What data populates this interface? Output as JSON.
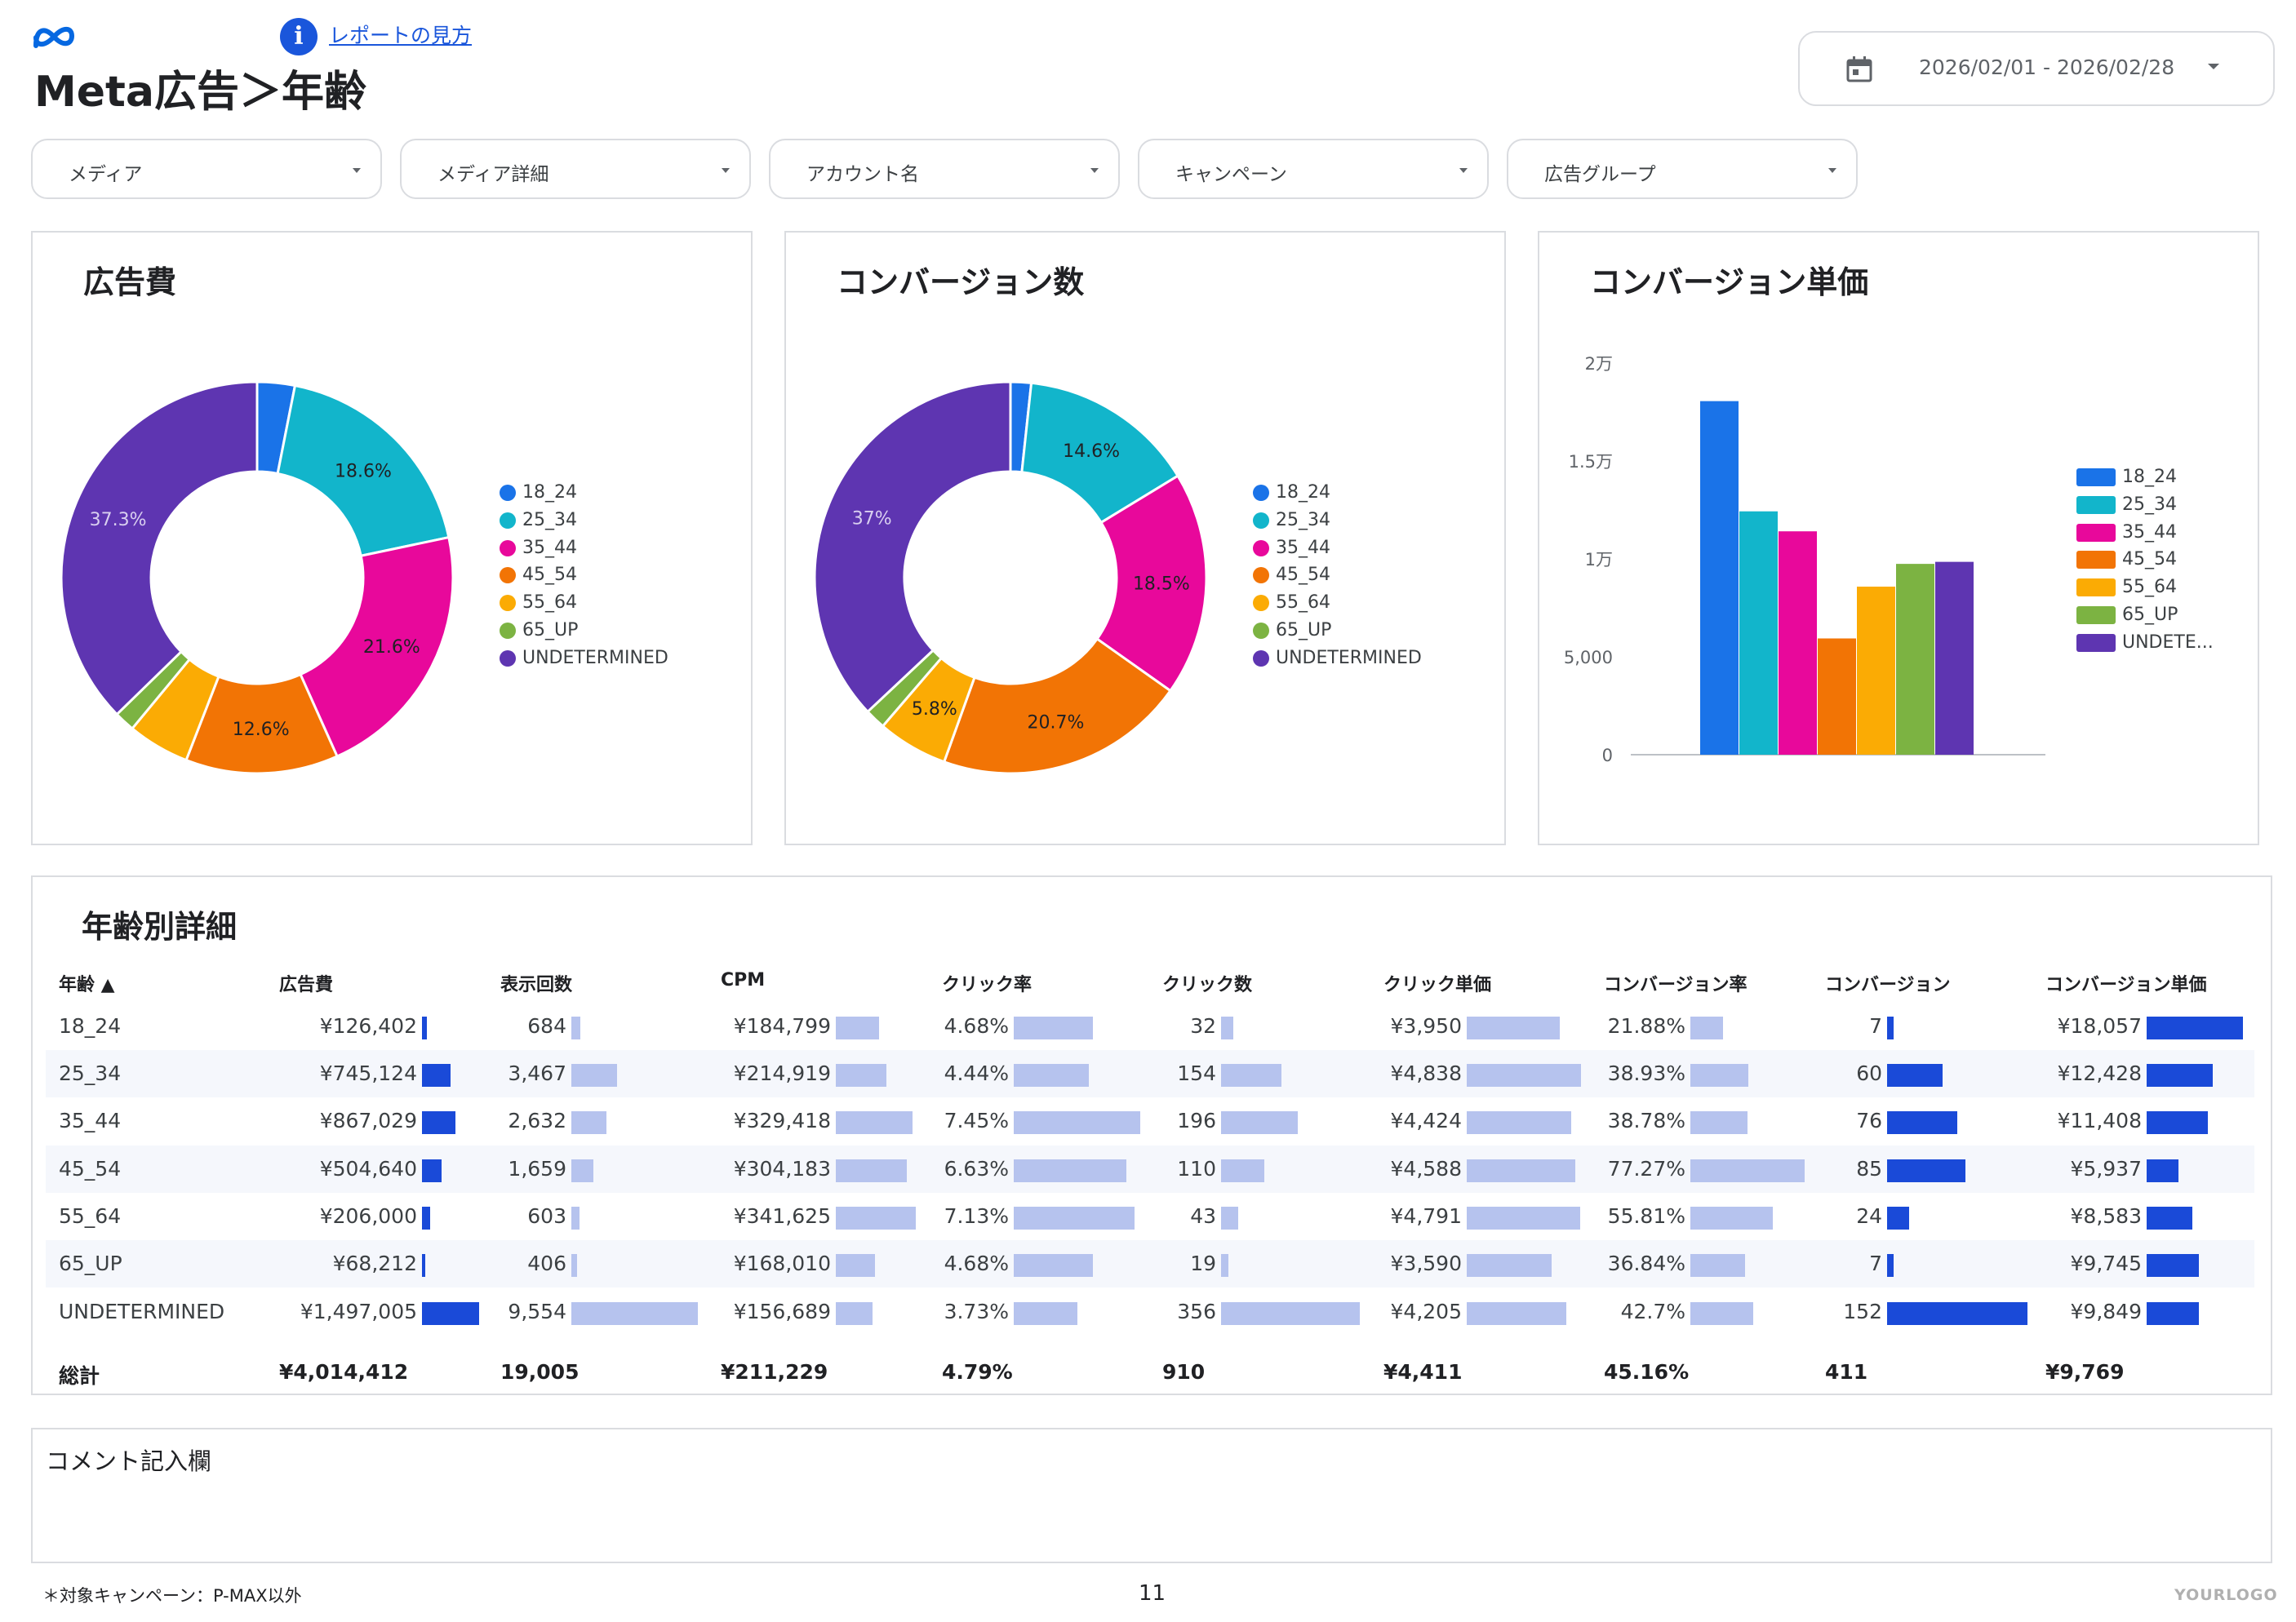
{
  "header": {
    "title": "Meta広告＞年齢",
    "help_link": "レポートの見方",
    "date_range": "2026/02/01 - 2026/02/28"
  },
  "filters": [
    {
      "label": "メディア"
    },
    {
      "label": "メディア詳細"
    },
    {
      "label": "アカウント名"
    },
    {
      "label": "キャンペーン"
    },
    {
      "label": "広告グループ"
    }
  ],
  "colors": {
    "18_24": "#1a73e8",
    "25_34": "#12b5cb",
    "35_44": "#e8089b",
    "45_54": "#f27405",
    "55_64": "#fbab04",
    "65_UP": "#7cb342",
    "UNDETERMINED": "#5e35b1",
    "bar_dark": "#1a4ad8",
    "bar_light": "#b6c3ee"
  },
  "chart_data": [
    {
      "type": "pie",
      "title": "広告費",
      "categories": [
        "18_24",
        "25_34",
        "35_44",
        "45_54",
        "55_64",
        "65_UP",
        "UNDETERMINED"
      ],
      "values": [
        3.1,
        18.6,
        21.6,
        12.6,
        5.1,
        1.7,
        37.3
      ],
      "slice_labels": [
        "",
        "18.6%",
        "21.6%",
        "12.6%",
        "",
        "",
        "37.3%"
      ],
      "legend": [
        "18_24",
        "25_34",
        "35_44",
        "45_54",
        "55_64",
        "65_UP",
        "UNDETERMINED"
      ],
      "legend_position": "right"
    },
    {
      "type": "pie",
      "title": "コンバージョン数",
      "categories": [
        "18_24",
        "25_34",
        "35_44",
        "45_54",
        "55_64",
        "65_UP",
        "UNDETERMINED"
      ],
      "values": [
        1.7,
        14.6,
        18.5,
        20.7,
        5.8,
        1.7,
        37.0
      ],
      "slice_labels": [
        "",
        "14.6%",
        "18.5%",
        "20.7%",
        "5.8%",
        "",
        "37%"
      ],
      "legend": [
        "18_24",
        "25_34",
        "35_44",
        "45_54",
        "55_64",
        "65_UP",
        "UNDETERMINED"
      ],
      "legend_position": "right"
    },
    {
      "type": "bar",
      "title": "コンバージョン単価",
      "categories": [
        "18_24",
        "25_34",
        "35_44",
        "45_54",
        "55_64",
        "65_UP",
        "UNDETERMINED"
      ],
      "values": [
        18057,
        12428,
        11408,
        5937,
        8583,
        9745,
        9849
      ],
      "ylim": [
        0,
        20000
      ],
      "yticks": [
        0,
        5000,
        10000,
        15000,
        20000
      ],
      "ytick_labels": [
        "0",
        "5,000",
        "1万",
        "1.5万",
        "2万"
      ],
      "legend": [
        "18_24",
        "25_34",
        "35_44",
        "45_54",
        "55_64",
        "65_UP",
        "UNDETE..."
      ],
      "legend_position": "right"
    }
  ],
  "table": {
    "title": "年齢別詳細",
    "sort_indicator": "▲",
    "headers": [
      "年齢",
      "広告費",
      "表示回数",
      "CPM",
      "クリック率",
      "クリック数",
      "クリック単価",
      "コンバージョン率",
      "コンバージョン",
      "コンバージョン単価"
    ],
    "rows": [
      {
        "age": "18_24",
        "cost": "¥126,402",
        "impressions": "684",
        "cpm": "¥184,799",
        "ctr": "4.68%",
        "clicks": "32",
        "cpc": "¥3,950",
        "cvr": "21.88%",
        "cv": "7",
        "cpa": "¥18,057"
      },
      {
        "age": "25_34",
        "cost": "¥745,124",
        "impressions": "3,467",
        "cpm": "¥214,919",
        "ctr": "4.44%",
        "clicks": "154",
        "cpc": "¥4,838",
        "cvr": "38.93%",
        "cv": "60",
        "cpa": "¥12,428"
      },
      {
        "age": "35_44",
        "cost": "¥867,029",
        "impressions": "2,632",
        "cpm": "¥329,418",
        "ctr": "7.45%",
        "clicks": "196",
        "cpc": "¥4,424",
        "cvr": "38.78%",
        "cv": "76",
        "cpa": "¥11,408"
      },
      {
        "age": "45_54",
        "cost": "¥504,640",
        "impressions": "1,659",
        "cpm": "¥304,183",
        "ctr": "6.63%",
        "clicks": "110",
        "cpc": "¥4,588",
        "cvr": "77.27%",
        "cv": "85",
        "cpa": "¥5,937"
      },
      {
        "age": "55_64",
        "cost": "¥206,000",
        "impressions": "603",
        "cpm": "¥341,625",
        "ctr": "7.13%",
        "clicks": "43",
        "cpc": "¥4,791",
        "cvr": "55.81%",
        "cv": "24",
        "cpa": "¥8,583"
      },
      {
        "age": "65_UP",
        "cost": "¥68,212",
        "impressions": "406",
        "cpm": "¥168,010",
        "ctr": "4.68%",
        "clicks": "19",
        "cpc": "¥3,590",
        "cvr": "36.84%",
        "cv": "7",
        "cpa": "¥9,745"
      },
      {
        "age": "UNDETERMINED",
        "cost": "¥1,497,005",
        "impressions": "9,554",
        "cpm": "¥156,689",
        "ctr": "3.73%",
        "clicks": "356",
        "cpc": "¥4,205",
        "cvr": "42.7%",
        "cv": "152",
        "cpa": "¥9,849"
      }
    ],
    "totals": {
      "label": "総計",
      "cost": "¥4,014,412",
      "impressions": "19,005",
      "cpm": "¥211,229",
      "ctr": "4.79%",
      "clicks": "910",
      "cpc": "¥4,411",
      "cvr": "45.16%",
      "cv": "411",
      "cpa": "¥9,769"
    }
  },
  "comment": {
    "label": "コメント記入欄"
  },
  "footer": {
    "note": "＊対象キャンペーン：P-MAX以外",
    "page_number": "11",
    "logo": "YOURLOGO"
  }
}
